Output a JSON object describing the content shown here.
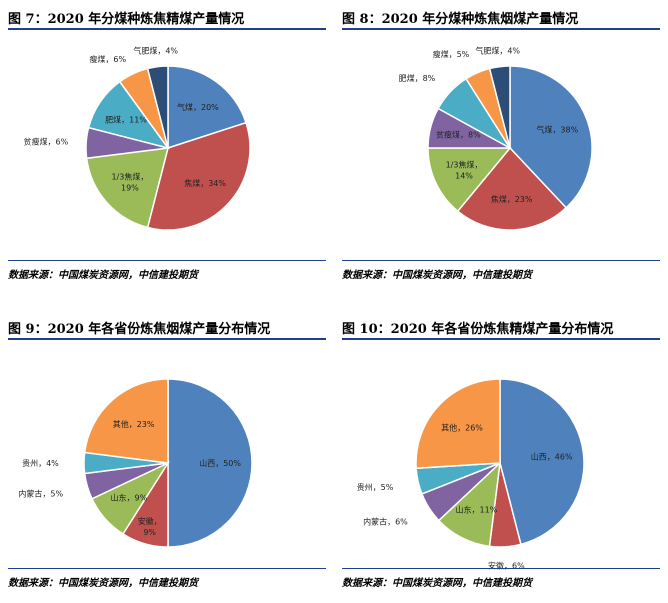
{
  "chart_data": [
    {
      "type": "pie",
      "title": "图 7：2020 年分煤种炼焦精煤产量情况",
      "source": "数据来源：中国煤炭资源网，中信建投期货",
      "slices": [
        {
          "name": "气煤",
          "value": 20,
          "label": "气煤，20%",
          "color": "#4f81bd"
        },
        {
          "name": "焦煤",
          "value": 34,
          "label": "焦煤，34%",
          "color": "#c0504d"
        },
        {
          "name": "1/3焦煤",
          "value": 19,
          "label": "1/3焦煤，\n19%",
          "color": "#9bbb59"
        },
        {
          "name": "贫瘦煤",
          "value": 6,
          "label": "贫瘦煤，6%",
          "color": "#8064a2"
        },
        {
          "name": "肥煤",
          "value": 11,
          "label": "肥煤，11%",
          "color": "#4bacc6"
        },
        {
          "name": "瘦煤",
          "value": 6,
          "label": "瘦煤，6%",
          "color": "#f79646"
        },
        {
          "name": "气肥煤",
          "value": 4,
          "label": "气肥煤，4%",
          "color": "#2c4d75"
        }
      ]
    },
    {
      "type": "pie",
      "title": "图 8：2020 年分煤种炼焦烟煤产量情况",
      "source": "数据来源：中国煤炭资源网，中信建投期货",
      "slices": [
        {
          "name": "气煤",
          "value": 38,
          "label": "气煤，38%",
          "color": "#4f81bd"
        },
        {
          "name": "焦煤",
          "value": 23,
          "label": "焦煤，23%",
          "color": "#c0504d"
        },
        {
          "name": "1/3焦煤",
          "value": 14,
          "label": "1/3焦煤，\n14%",
          "color": "#9bbb59"
        },
        {
          "name": "贫瘦煤",
          "value": 8,
          "label": "贫瘦煤，8%",
          "color": "#8064a2"
        },
        {
          "name": "肥煤",
          "value": 8,
          "label": "肥煤，8%",
          "color": "#4bacc6"
        },
        {
          "name": "瘦煤",
          "value": 5,
          "label": "瘦煤，5%",
          "color": "#f79646"
        },
        {
          "name": "气肥煤",
          "value": 4,
          "label": "气肥煤，4%",
          "color": "#2c4d75"
        }
      ]
    },
    {
      "type": "pie",
      "title": "图 9：2020 年各省份炼焦烟煤产量分布情况",
      "source": "数据来源：中国煤炭资源网，中信建投期货",
      "slices": [
        {
          "name": "山西",
          "value": 50,
          "label": "山西，50%",
          "color": "#4f81bd"
        },
        {
          "name": "安徽",
          "value": 9,
          "label": "安徽，\n9%",
          "color": "#c0504d"
        },
        {
          "name": "山东",
          "value": 9,
          "label": "山东，9%",
          "color": "#9bbb59"
        },
        {
          "name": "内蒙古",
          "value": 5,
          "label": "内蒙古，5%",
          "color": "#8064a2"
        },
        {
          "name": "贵州",
          "value": 4,
          "label": "贵州，4%",
          "color": "#4bacc6"
        },
        {
          "name": "其他",
          "value": 23,
          "label": "其他，23%",
          "color": "#f79646"
        }
      ]
    },
    {
      "type": "pie",
      "title": "图 10：2020 年各省份炼焦精煤产量分布情况",
      "source": "数据来源：中国煤炭资源网，中信建投期货",
      "slices": [
        {
          "name": "山西",
          "value": 46,
          "label": "山西，46%",
          "color": "#4f81bd"
        },
        {
          "name": "安徽",
          "value": 6,
          "label": "安徽，6%",
          "color": "#c0504d"
        },
        {
          "name": "山东",
          "value": 11,
          "label": "山东，11%",
          "color": "#9bbb59"
        },
        {
          "name": "内蒙古",
          "value": 6,
          "label": "内蒙古，6%",
          "color": "#8064a2"
        },
        {
          "name": "贵州",
          "value": 5,
          "label": "贵州，5%",
          "color": "#4bacc6"
        },
        {
          "name": "其他",
          "value": 26,
          "label": "其他，26%",
          "color": "#f79646"
        }
      ]
    }
  ]
}
